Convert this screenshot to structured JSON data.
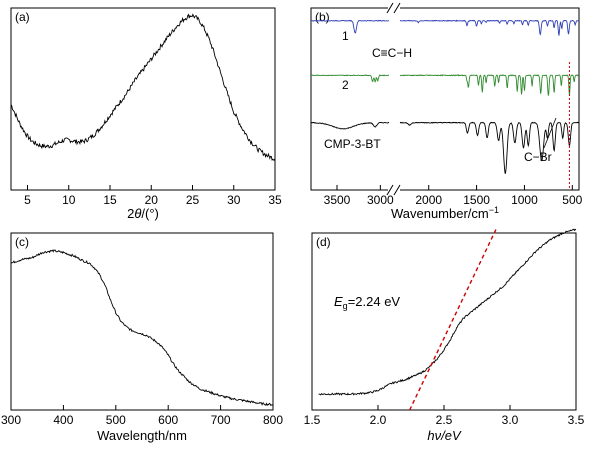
{
  "chart_data": [
    {
      "panel": "(a)",
      "type": "line",
      "xlabel_prefix": "2",
      "xlabel_var": "θ",
      "xlabel_suffix": "/(°)",
      "xlim": [
        3,
        35
      ],
      "ylim": [
        0,
        1
      ],
      "y_ticks_labeled": false,
      "xticks": [
        "5",
        "10",
        "15",
        "20",
        "25",
        "30",
        "35"
      ],
      "xtick_values": [
        5,
        10,
        15,
        20,
        25,
        30,
        35
      ],
      "noisy": true,
      "series": [
        {
          "color": "#000000",
          "x": [
            3,
            3.5,
            4,
            4.5,
            5,
            5.5,
            6,
            6.5,
            7,
            7.5,
            8,
            8.5,
            9,
            9.5,
            10,
            10.5,
            11,
            11.5,
            12,
            13,
            14,
            15,
            16,
            17,
            18,
            19,
            20,
            21,
            22,
            23,
            23.5,
            24,
            24.5,
            25,
            25.5,
            26,
            26.5,
            27,
            27.5,
            28,
            29,
            30,
            31,
            32,
            33,
            34,
            35
          ],
          "y": [
            0.47,
            0.42,
            0.37,
            0.33,
            0.295,
            0.27,
            0.255,
            0.245,
            0.24,
            0.24,
            0.245,
            0.255,
            0.265,
            0.275,
            0.275,
            0.27,
            0.265,
            0.265,
            0.27,
            0.3,
            0.35,
            0.41,
            0.47,
            0.53,
            0.6,
            0.66,
            0.72,
            0.78,
            0.84,
            0.895,
            0.92,
            0.94,
            0.955,
            0.96,
            0.945,
            0.92,
            0.88,
            0.83,
            0.77,
            0.7,
            0.56,
            0.43,
            0.34,
            0.27,
            0.22,
            0.19,
            0.17
          ]
        }
      ]
    },
    {
      "panel": "(b)",
      "type": "line",
      "xlabel": "Wavenumber/cm",
      "xlabel_sup": "−1",
      "axis_break": true,
      "xlim_left": [
        3800,
        2900
      ],
      "xlim_right": [
        2300,
        430
      ],
      "xticks_left": [
        "3500",
        "3000"
      ],
      "xtick_values_left": [
        3500,
        3000
      ],
      "xticks_right": [
        "2000",
        "1500",
        "1000",
        "500"
      ],
      "xtick_values_right": [
        2000,
        1500,
        1000,
        500
      ],
      "marker_line_x": 530,
      "marker_line_color": "#cc0000",
      "annotations": [
        "C≡C−H",
        "C−Br"
      ],
      "series": [
        {
          "name": "1",
          "color": "#2f3fb6",
          "baseline": 0.93,
          "depth_scale": 0.085,
          "peaks": [
            {
              "x": 3290,
              "depth": 0.8,
              "width": 14
            },
            {
              "x": 2110,
              "depth": 0.12,
              "width": 8
            },
            {
              "x": 1600,
              "depth": 0.3,
              "width": 7
            },
            {
              "x": 1500,
              "depth": 0.35,
              "width": 7
            },
            {
              "x": 1450,
              "depth": 0.2,
              "width": 6
            },
            {
              "x": 1400,
              "depth": 0.12,
              "width": 5
            },
            {
              "x": 1260,
              "depth": 0.15,
              "width": 6
            },
            {
              "x": 1180,
              "depth": 0.22,
              "width": 6
            },
            {
              "x": 1110,
              "depth": 0.18,
              "width": 6
            },
            {
              "x": 1020,
              "depth": 0.28,
              "width": 6
            },
            {
              "x": 960,
              "depth": 0.3,
              "width": 6
            },
            {
              "x": 835,
              "depth": 0.9,
              "width": 9
            },
            {
              "x": 760,
              "depth": 0.35,
              "width": 6
            },
            {
              "x": 690,
              "depth": 0.45,
              "width": 6
            },
            {
              "x": 640,
              "depth": 0.95,
              "width": 7
            },
            {
              "x": 610,
              "depth": 0.5,
              "width": 6
            },
            {
              "x": 540,
              "depth": 0.85,
              "width": 8
            },
            {
              "x": 470,
              "depth": 0.25,
              "width": 6
            }
          ]
        },
        {
          "name": "2",
          "color": "#2e8b2e",
          "baseline": 0.63,
          "depth_scale": 0.12,
          "peaks": [
            {
              "x": 3090,
              "depth": 0.3,
              "width": 8
            },
            {
              "x": 3060,
              "depth": 0.3,
              "width": 8
            },
            {
              "x": 3030,
              "depth": 0.25,
              "width": 8
            },
            {
              "x": 1600,
              "depth": 0.25,
              "width": 6
            },
            {
              "x": 1585,
              "depth": 0.55,
              "width": 6
            },
            {
              "x": 1480,
              "depth": 0.45,
              "width": 6
            },
            {
              "x": 1440,
              "depth": 0.8,
              "width": 6
            },
            {
              "x": 1400,
              "depth": 0.35,
              "width": 5
            },
            {
              "x": 1310,
              "depth": 0.5,
              "width": 6
            },
            {
              "x": 1270,
              "depth": 0.35,
              "width": 5
            },
            {
              "x": 1180,
              "depth": 0.6,
              "width": 6
            },
            {
              "x": 1075,
              "depth": 0.75,
              "width": 6
            },
            {
              "x": 1030,
              "depth": 0.9,
              "width": 6
            },
            {
              "x": 1000,
              "depth": 0.7,
              "width": 6
            },
            {
              "x": 920,
              "depth": 0.5,
              "width": 5
            },
            {
              "x": 830,
              "depth": 0.85,
              "width": 7
            },
            {
              "x": 750,
              "depth": 0.95,
              "width": 7
            },
            {
              "x": 690,
              "depth": 0.8,
              "width": 6
            },
            {
              "x": 615,
              "depth": 0.5,
              "width": 5
            },
            {
              "x": 530,
              "depth": 0.9,
              "width": 6
            },
            {
              "x": 480,
              "depth": 0.3,
              "width": 5
            }
          ]
        },
        {
          "name": "CMP-3-BT",
          "color": "#000000",
          "baseline": 0.37,
          "depth_scale": 0.28,
          "peaks": [
            {
              "x": 3430,
              "depth": 0.12,
              "width": 120
            },
            {
              "x": 3060,
              "depth": 0.08,
              "width": 20
            },
            {
              "x": 2200,
              "depth": 0.05,
              "width": 15
            },
            {
              "x": 1595,
              "depth": 0.2,
              "width": 12
            },
            {
              "x": 1490,
              "depth": 0.25,
              "width": 12
            },
            {
              "x": 1390,
              "depth": 0.3,
              "width": 12
            },
            {
              "x": 1270,
              "depth": 0.35,
              "width": 14
            },
            {
              "x": 1200,
              "depth": 1.0,
              "width": 18
            },
            {
              "x": 1100,
              "depth": 0.4,
              "width": 14
            },
            {
              "x": 1010,
              "depth": 0.5,
              "width": 14
            },
            {
              "x": 960,
              "depth": 0.45,
              "width": 12
            },
            {
              "x": 820,
              "depth": 0.75,
              "width": 20
            },
            {
              "x": 760,
              "depth": 0.3,
              "width": 10
            },
            {
              "x": 690,
              "depth": 0.55,
              "width": 12
            },
            {
              "x": 600,
              "depth": 0.3,
              "width": 10
            },
            {
              "x": 530,
              "depth": 0.45,
              "width": 12
            }
          ]
        }
      ]
    },
    {
      "panel": "(c)",
      "type": "line",
      "xlabel": "Wavelength/nm",
      "xlim": [
        300,
        800
      ],
      "ylim": [
        0,
        1
      ],
      "y_ticks_labeled": false,
      "xticks": [
        "300",
        "400",
        "500",
        "600",
        "700",
        "800"
      ],
      "xtick_values": [
        300,
        400,
        500,
        600,
        700,
        800
      ],
      "noisy": true,
      "series": [
        {
          "color": "#000000",
          "x": [
            300,
            320,
            340,
            360,
            380,
            400,
            420,
            440,
            450,
            460,
            470,
            480,
            490,
            500,
            510,
            520,
            530,
            540,
            550,
            560,
            570,
            580,
            590,
            600,
            610,
            620,
            630,
            640,
            650,
            660,
            680,
            700,
            720,
            740,
            760,
            780,
            800
          ],
          "y": [
            0.83,
            0.85,
            0.86,
            0.89,
            0.9,
            0.89,
            0.87,
            0.84,
            0.83,
            0.8,
            0.76,
            0.7,
            0.62,
            0.55,
            0.5,
            0.47,
            0.45,
            0.44,
            0.43,
            0.42,
            0.4,
            0.38,
            0.35,
            0.31,
            0.26,
            0.22,
            0.19,
            0.16,
            0.14,
            0.12,
            0.1,
            0.08,
            0.065,
            0.055,
            0.045,
            0.035,
            0.03
          ]
        }
      ]
    },
    {
      "panel": "(d)",
      "type": "line",
      "xlabel": "hν/eV",
      "xlim": [
        1.5,
        3.5
      ],
      "ylim": [
        0,
        1
      ],
      "y_ticks_labeled": false,
      "xticks": [
        "1.5",
        "2.0",
        "2.5",
        "3.0",
        "3.5"
      ],
      "xtick_values": [
        1.5,
        2.0,
        2.5,
        3.0,
        3.5
      ],
      "noisy": true,
      "annotation_main": "E",
      "annotation_sub": "g",
      "annotation_value": "=2.24 eV",
      "series": [
        {
          "color": "#000000",
          "x": [
            1.55,
            1.6,
            1.7,
            1.8,
            1.9,
            1.95,
            2.0,
            2.05,
            2.1,
            2.15,
            2.2,
            2.25,
            2.3,
            2.35,
            2.4,
            2.45,
            2.5,
            2.55,
            2.6,
            2.65,
            2.7,
            2.75,
            2.8,
            2.85,
            2.9,
            2.95,
            3.0,
            3.05,
            3.1,
            3.15,
            3.2,
            3.25,
            3.3,
            3.35,
            3.4,
            3.45,
            3.5
          ],
          "y": [
            0.09,
            0.09,
            0.09,
            0.09,
            0.095,
            0.1,
            0.11,
            0.13,
            0.15,
            0.16,
            0.17,
            0.185,
            0.2,
            0.22,
            0.25,
            0.29,
            0.34,
            0.4,
            0.47,
            0.52,
            0.55,
            0.58,
            0.61,
            0.64,
            0.67,
            0.7,
            0.74,
            0.78,
            0.82,
            0.86,
            0.9,
            0.93,
            0.96,
            0.98,
            1.0,
            1.01,
            1.02
          ]
        }
      ],
      "fit_line": {
        "color": "#cc0000",
        "x": [
          2.24,
          2.9
        ],
        "y": [
          0.0,
          1.03
        ]
      }
    }
  ]
}
